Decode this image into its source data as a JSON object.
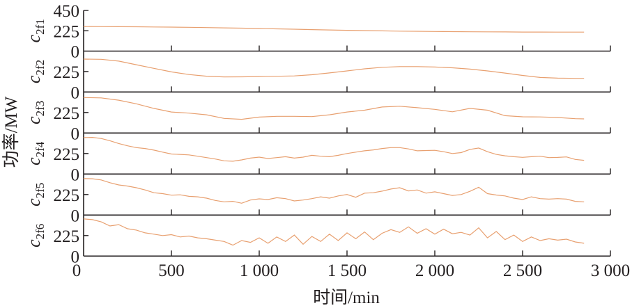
{
  "chart_data": {
    "type": "line",
    "layout": "6 vertically stacked panels sharing the x axis",
    "xlabel": "时间/min",
    "ylabel": "功率/MW",
    "xlim": [
      0,
      3000
    ],
    "xticks": [
      0,
      500,
      1000,
      1500,
      2000,
      2500,
      3000
    ],
    "xtick_labels": [
      "0",
      "500",
      "1 000",
      "1 500",
      "2 000",
      "2 500",
      "3 000"
    ],
    "ylim": [
      0,
      450
    ],
    "yticks": [
      0,
      225,
      450
    ],
    "ytick_labels": {
      "top": "450",
      "mid": "225",
      "zero": "0"
    },
    "grid": false,
    "line_color": "#e8a070",
    "series": [
      {
        "name": "c",
        "sub": "2f1",
        "x": [
          0,
          100,
          200,
          300,
          400,
          500,
          600,
          700,
          800,
          900,
          1000,
          1100,
          1200,
          1300,
          1400,
          1500,
          1600,
          1700,
          1800,
          1900,
          2000,
          2100,
          2200,
          2300,
          2400,
          2500,
          2600,
          2700,
          2800,
          2850
        ],
        "y": [
          272,
          271,
          270,
          269,
          267,
          265,
          263,
          260,
          257,
          254,
          250,
          246,
          242,
          238,
          234,
          230,
          227,
          224,
          221,
          219,
          217,
          215,
          214,
          213,
          212,
          211,
          211,
          210,
          210,
          210
        ]
      },
      {
        "name": "c",
        "sub": "2f2",
        "x": [
          0,
          100,
          200,
          300,
          400,
          500,
          600,
          700,
          800,
          900,
          1000,
          1100,
          1200,
          1300,
          1400,
          1500,
          1600,
          1700,
          1800,
          1900,
          2000,
          2100,
          2200,
          2300,
          2400,
          2500,
          2600,
          2700,
          2800,
          2850
        ],
        "y": [
          362,
          360,
          340,
          300,
          260,
          221,
          192,
          174,
          166,
          167,
          170,
          173,
          177,
          190,
          210,
          232,
          255,
          272,
          279,
          279,
          275,
          266,
          252,
          232,
          208,
          182,
          160,
          152,
          150,
          150
        ]
      },
      {
        "name": "c",
        "sub": "2f3",
        "x": [
          0,
          100,
          200,
          300,
          400,
          500,
          600,
          700,
          800,
          900,
          1000,
          1100,
          1200,
          1300,
          1400,
          1500,
          1600,
          1700,
          1800,
          1900,
          2000,
          2100,
          2200,
          2300,
          2400,
          2500,
          2600,
          2700,
          2800,
          2850
        ],
        "y": [
          389,
          385,
          360,
          320,
          270,
          230,
          218,
          200,
          160,
          150,
          175,
          183,
          183,
          180,
          200,
          230,
          250,
          285,
          294,
          278,
          259,
          233,
          270,
          250,
          190,
          178,
          176,
          170,
          157,
          155
        ]
      },
      {
        "name": "c",
        "sub": "2f4",
        "x": [
          0,
          50,
          100,
          150,
          200,
          250,
          300,
          350,
          400,
          450,
          500,
          550,
          600,
          650,
          700,
          750,
          800,
          850,
          900,
          950,
          1000,
          1050,
          1100,
          1150,
          1200,
          1250,
          1300,
          1350,
          1400,
          1450,
          1500,
          1550,
          1600,
          1650,
          1700,
          1750,
          1800,
          1850,
          1900,
          1950,
          2000,
          2050,
          2100,
          2150,
          2200,
          2250,
          2300,
          2350,
          2400,
          2450,
          2500,
          2550,
          2600,
          2650,
          2700,
          2750,
          2800,
          2850
        ],
        "y": [
          400,
          402,
          390,
          365,
          335,
          310,
          290,
          280,
          262,
          240,
          220,
          215,
          210,
          195,
          180,
          165,
          145,
          140,
          155,
          175,
          185,
          170,
          180,
          190,
          175,
          185,
          205,
          195,
          190,
          205,
          225,
          240,
          255,
          265,
          280,
          290,
          290,
          275,
          255,
          258,
          260,
          245,
          225,
          235,
          270,
          285,
          245,
          215,
          200,
          190,
          183,
          190,
          195,
          180,
          182,
          188,
          160,
          150
        ]
      },
      {
        "name": "c",
        "sub": "2f5",
        "x": [
          0,
          50,
          100,
          150,
          200,
          250,
          300,
          350,
          400,
          450,
          500,
          550,
          600,
          650,
          700,
          750,
          800,
          850,
          900,
          950,
          1000,
          1050,
          1100,
          1150,
          1200,
          1250,
          1300,
          1350,
          1400,
          1450,
          1500,
          1550,
          1600,
          1650,
          1700,
          1750,
          1800,
          1850,
          1900,
          1950,
          2000,
          2050,
          2100,
          2150,
          2200,
          2250,
          2300,
          2350,
          2400,
          2450,
          2500,
          2550,
          2600,
          2650,
          2700,
          2750,
          2800,
          2850
        ],
        "y": [
          400,
          398,
          385,
          355,
          330,
          318,
          300,
          275,
          245,
          235,
          218,
          222,
          205,
          200,
          185,
          160,
          145,
          150,
          130,
          165,
          178,
          170,
          190,
          180,
          155,
          165,
          180,
          200,
          185,
          210,
          225,
          195,
          240,
          245,
          262,
          285,
          300,
          265,
          275,
          240,
          255,
          235,
          215,
          225,
          260,
          305,
          235,
          220,
          210,
          185,
          170,
          200,
          180,
          175,
          180,
          175,
          150,
          145
        ]
      },
      {
        "name": "c",
        "sub": "2f6",
        "x": [
          0,
          50,
          100,
          150,
          200,
          250,
          300,
          350,
          400,
          450,
          500,
          550,
          600,
          650,
          700,
          750,
          800,
          850,
          900,
          950,
          1000,
          1050,
          1100,
          1150,
          1200,
          1250,
          1300,
          1350,
          1400,
          1450,
          1500,
          1550,
          1600,
          1650,
          1700,
          1750,
          1800,
          1850,
          1900,
          1950,
          2000,
          2050,
          2100,
          2150,
          2200,
          2250,
          2300,
          2350,
          2400,
          2450,
          2500,
          2550,
          2600,
          2650,
          2700,
          2750,
          2800,
          2850
        ],
        "y": [
          408,
          400,
          375,
          330,
          345,
          300,
          285,
          255,
          240,
          225,
          235,
          210,
          220,
          200,
          190,
          175,
          160,
          120,
          170,
          150,
          200,
          140,
          210,
          160,
          230,
          130,
          215,
          160,
          240,
          170,
          255,
          190,
          265,
          180,
          250,
          290,
          260,
          320,
          250,
          300,
          240,
          295,
          245,
          260,
          230,
          310,
          200,
          270,
          180,
          230,
          160,
          210,
          170,
          190,
          175,
          185,
          155,
          140
        ]
      }
    ]
  }
}
